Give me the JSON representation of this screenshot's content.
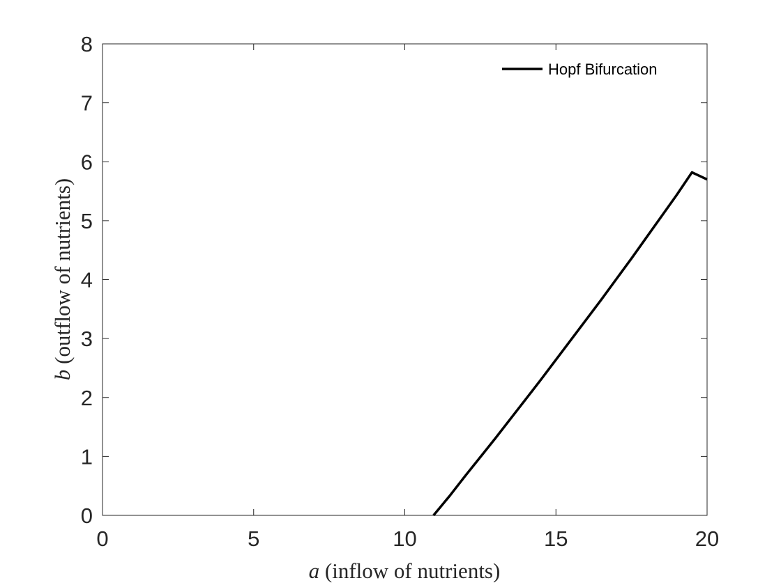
{
  "chart_data": {
    "type": "line",
    "xlabel_var": "a",
    "xlabel_text": " (inflow of nutrients)",
    "ylabel_var": "b",
    "ylabel_text": " (outflow of nutrients)",
    "xlim": [
      0,
      20
    ],
    "ylim": [
      0,
      8
    ],
    "xticks": [
      0,
      5,
      10,
      15,
      20
    ],
    "yticks": [
      0,
      1,
      2,
      3,
      4,
      5,
      6,
      7,
      8
    ],
    "grid": false,
    "legend_position": "top-right",
    "series": [
      {
        "name": "Hopf Bifurcation",
        "color": "#000000",
        "x": [
          10.95,
          11.5,
          12,
          12.5,
          13,
          13.5,
          14,
          14.5,
          15,
          15.5,
          16,
          16.5,
          17,
          17.5,
          18,
          18.5,
          19,
          19.5,
          20
        ],
        "y": [
          0.0,
          0.34,
          0.67,
          0.99,
          1.31,
          1.64,
          1.97,
          2.3,
          2.64,
          2.98,
          3.32,
          3.66,
          4.01,
          4.36,
          4.72,
          5.08,
          5.44,
          5.82,
          5.7
        ]
      }
    ]
  }
}
